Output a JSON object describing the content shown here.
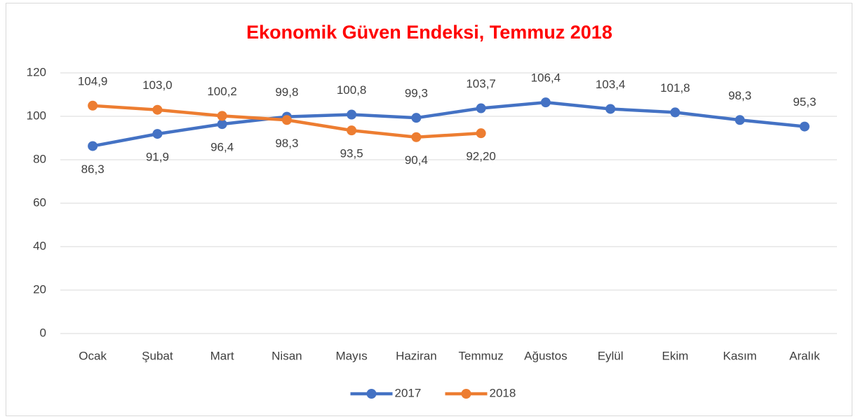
{
  "chart_data": {
    "type": "line",
    "title": "Ekonomik Güven Endeksi, Temmuz 2018",
    "categories": [
      "Ocak",
      "Şubat",
      "Mart",
      "Nisan",
      "Mayıs",
      "Haziran",
      "Temmuz",
      "Ağustos",
      "Eylül",
      "Ekim",
      "Kasım",
      "Aralık"
    ],
    "series": [
      {
        "name": "2017",
        "color": "#4472c4",
        "values": [
          86.3,
          91.9,
          96.4,
          99.8,
          100.8,
          99.3,
          103.7,
          106.4,
          103.4,
          101.8,
          98.3,
          95.3
        ],
        "value_labels": [
          "86,3",
          "91,9",
          "96,4",
          "99,8",
          "100,8",
          "99,3",
          "103,7",
          "106,4",
          "103,4",
          "101,8",
          "98,3",
          "95,3"
        ]
      },
      {
        "name": "2018",
        "color": "#ed7d31",
        "values": [
          104.9,
          103.0,
          100.2,
          98.3,
          93.5,
          90.4,
          92.2,
          null,
          null,
          null,
          null,
          null
        ],
        "value_labels": [
          "104,9",
          "103,0",
          "100,2",
          "98,3",
          "93,5",
          "90,4",
          "92,20",
          null,
          null,
          null,
          null,
          null
        ]
      }
    ],
    "ylim": [
      0,
      120
    ],
    "yticks": [
      0,
      20,
      40,
      60,
      80,
      100,
      120
    ],
    "grid": true,
    "legend": "bottom"
  }
}
